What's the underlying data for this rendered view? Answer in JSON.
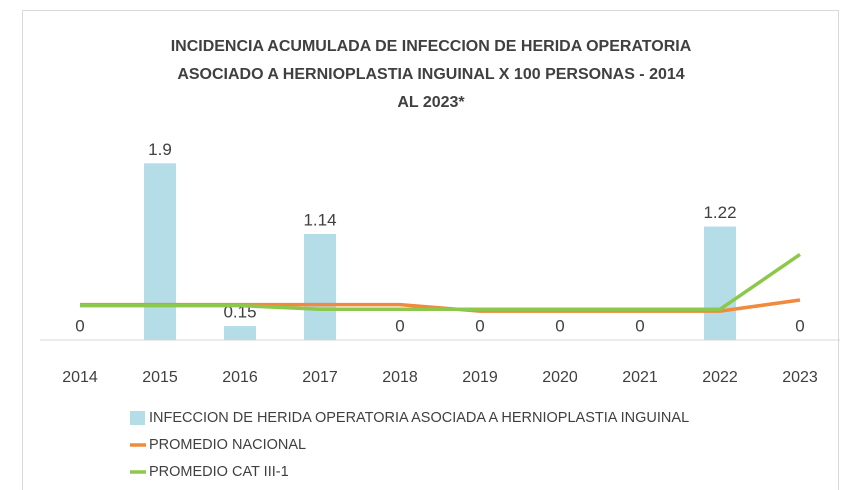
{
  "chart_data": {
    "type": "bar-line",
    "title": [
      "INCIDENCIA ACUMULADA DE INFECCION DE HERIDA OPERATORIA",
      "ASOCIADO A HERNIOPLASTIA INGUINAL  X 100 PERSONAS -  2014",
      "AL  2023*"
    ],
    "categories": [
      "2014",
      "2015",
      "2016",
      "2017",
      "2018",
      "2019",
      "2020",
      "2021",
      "2022",
      "2023"
    ],
    "series": [
      {
        "name": "INFECCION DE HERIDA OPERATORIA ASOCIADA A HERNIOPLASTIA INGUINAL",
        "type": "bar",
        "color": "#b4dde8",
        "values": [
          0,
          1.9,
          0.15,
          1.14,
          0,
          0,
          0,
          0,
          1.22,
          0
        ]
      },
      {
        "name": "PROMEDIO NACIONAL",
        "type": "line",
        "color": "#f08a3c",
        "values": [
          0.38,
          0.38,
          0.38,
          0.38,
          0.38,
          0.31,
          0.31,
          0.31,
          0.31,
          0.43
        ]
      },
      {
        "name": "PROMEDIO CAT III-1",
        "type": "line",
        "color": "#8cc84b",
        "values": [
          0.37,
          0.37,
          0.37,
          0.33,
          0.33,
          0.33,
          0.33,
          0.33,
          0.33,
          0.92
        ]
      }
    ],
    "ylim": [
      0,
      2
    ]
  }
}
